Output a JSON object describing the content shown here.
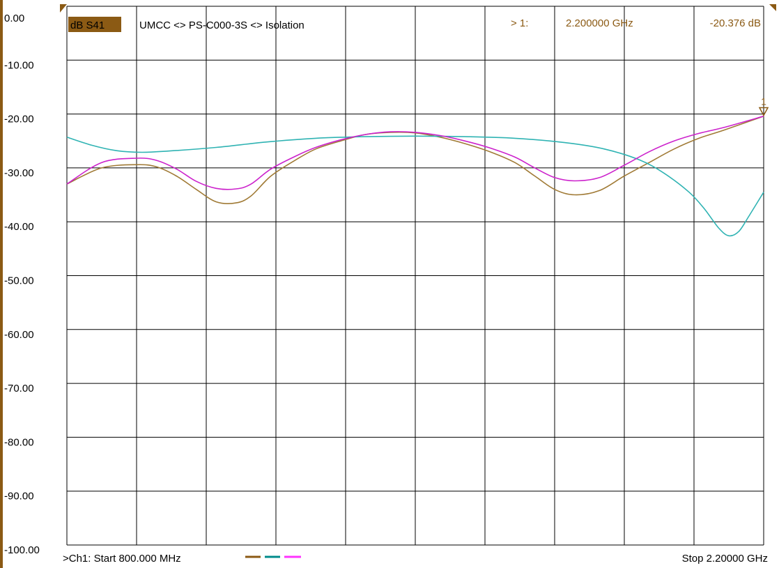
{
  "chart_data": {
    "type": "line",
    "header": {
      "trace_label": "dB S41",
      "title": "UMCC <> PS-C000-3S <> Isolation",
      "marker_label": "> 1:",
      "marker_freq": "2.200000 GHz",
      "marker_value": "-20.376 dB",
      "marker_number": "1"
    },
    "footer": {
      "start_label": ">Ch1: Start  800.000 MHz",
      "stop_label": "Stop  2.20000 GHz"
    },
    "x_unit": "GHz",
    "xlim": [
      0.8,
      2.2
    ],
    "ylim": [
      -100,
      0
    ],
    "y_ticks": [
      "0.00",
      "-10.00",
      "-20.00",
      "-30.00",
      "-40.00",
      "-50.00",
      "-60.00",
      "-70.00",
      "-80.00",
      "-90.00",
      "-100.00"
    ],
    "grid": true,
    "colors": {
      "background": "#ffffff",
      "grid": "#000000",
      "label_bg": "#8b5a14"
    },
    "marker": {
      "x": 2.2,
      "y": -20.376
    },
    "series": [
      {
        "color": "#a07a35",
        "x": [
          0.8,
          0.87,
          0.94,
          0.98,
          1.02,
          1.06,
          1.1,
          1.14,
          1.17,
          1.21,
          1.26,
          1.3,
          1.35,
          1.4,
          1.45,
          1.5,
          1.55,
          1.6,
          1.65,
          1.7,
          1.74,
          1.78,
          1.82,
          1.87,
          1.92,
          1.97,
          2.02,
          2.07,
          2.12,
          2.2
        ],
        "y": [
          -33.0,
          -30.0,
          -29.4,
          -29.8,
          -31.5,
          -34.0,
          -36.3,
          -36.5,
          -35.2,
          -31.5,
          -28.5,
          -26.5,
          -25.0,
          -23.8,
          -23.4,
          -23.5,
          -24.3,
          -25.5,
          -27.0,
          -29.0,
          -31.5,
          -34.0,
          -35.0,
          -34.2,
          -31.5,
          -29.0,
          -26.5,
          -24.5,
          -23.0,
          -20.4
        ]
      },
      {
        "color": "#2fb3b3",
        "x": [
          0.8,
          0.85,
          0.9,
          0.95,
          1.0,
          1.1,
          1.2,
          1.3,
          1.4,
          1.5,
          1.6,
          1.7,
          1.8,
          1.88,
          1.95,
          2.0,
          2.05,
          2.08,
          2.11,
          2.13,
          2.15,
          2.17,
          2.2
        ],
        "y": [
          -24.3,
          -25.8,
          -26.8,
          -27.1,
          -26.9,
          -26.2,
          -25.2,
          -24.5,
          -24.2,
          -24.1,
          -24.2,
          -24.5,
          -25.3,
          -26.5,
          -28.5,
          -31.0,
          -34.5,
          -37.5,
          -41.2,
          -42.6,
          -41.8,
          -39.0,
          -34.5
        ]
      },
      {
        "color": "#cc22cc",
        "x": [
          0.8,
          0.87,
          0.94,
          0.98,
          1.02,
          1.06,
          1.1,
          1.14,
          1.17,
          1.21,
          1.26,
          1.3,
          1.35,
          1.4,
          1.45,
          1.5,
          1.55,
          1.6,
          1.65,
          1.7,
          1.74,
          1.78,
          1.82,
          1.87,
          1.92,
          1.97,
          2.02,
          2.07,
          2.12,
          2.2
        ],
        "y": [
          -33.0,
          -29.0,
          -28.2,
          -28.6,
          -30.2,
          -32.5,
          -33.8,
          -33.9,
          -33.0,
          -30.2,
          -27.8,
          -26.2,
          -24.8,
          -23.8,
          -23.3,
          -23.4,
          -24.0,
          -25.0,
          -26.3,
          -28.0,
          -30.0,
          -31.8,
          -32.4,
          -31.8,
          -29.5,
          -27.0,
          -25.0,
          -23.6,
          -22.5,
          -20.4
        ]
      }
    ]
  }
}
